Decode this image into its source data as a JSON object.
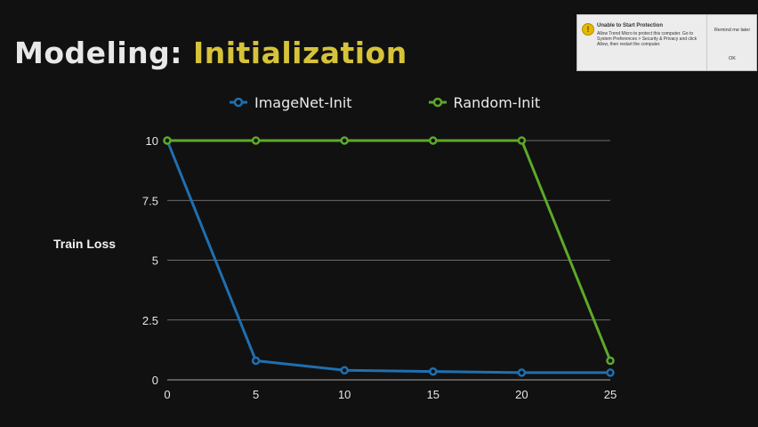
{
  "slide": {
    "title_main": "Modeling: ",
    "title_accent": "Initialization"
  },
  "colors": {
    "background": "#111111",
    "title_accent": "#d6c33a",
    "imagenet_series": "#1f6fb0",
    "random_series": "#5da92a",
    "gridline": "#8a8a8a"
  },
  "notification": {
    "icon": "warning-icon",
    "title": "Unable to Start Protection",
    "message": "Allow Trend Micro to protect this computer. Go to System Preferences > Security & Privacy and click Allow, then restart the computer.",
    "remind_label": "Remind me later",
    "ok_label": "OK"
  },
  "chart_data": {
    "type": "line",
    "title": "",
    "xlabel": "",
    "ylabel": "Train Loss",
    "x": [
      0,
      5,
      10,
      15,
      20,
      25
    ],
    "xlim": [
      0,
      25
    ],
    "ylim": [
      0,
      10
    ],
    "x_ticks": [
      "0",
      "5",
      "10",
      "15",
      "20",
      "25"
    ],
    "y_ticks": [
      "0",
      "2.5",
      "5",
      "7.5",
      "10"
    ],
    "grid": "horizontal",
    "legend_position": "top",
    "series": [
      {
        "name": "ImageNet-Init",
        "color": "#1f6fb0",
        "values": [
          10,
          0.8,
          0.4,
          0.35,
          0.3,
          0.3
        ]
      },
      {
        "name": "Random-Init",
        "color": "#5da92a",
        "values": [
          10,
          10,
          10,
          10,
          10,
          0.8
        ]
      }
    ]
  }
}
